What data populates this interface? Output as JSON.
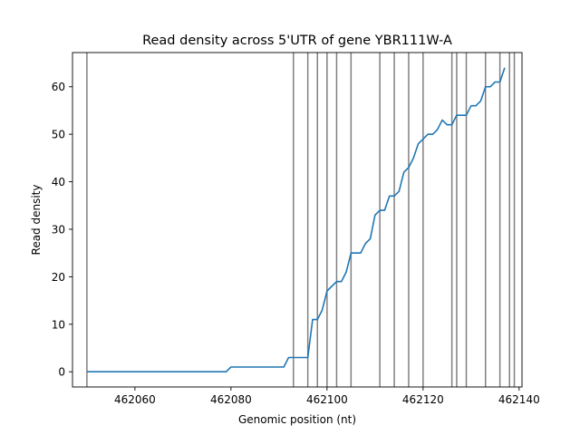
{
  "chart_data": {
    "type": "line",
    "title": "Read density across 5'UTR of gene YBR111W-A",
    "xlabel": "Genomic position (nt)",
    "ylabel": "Read density",
    "xlim": [
      462047,
      462140.6
    ],
    "ylim": [
      -3.2,
      67.2
    ],
    "xticks": [
      462060,
      462080,
      462100,
      462120,
      462140
    ],
    "yticks": [
      0,
      10,
      20,
      30,
      40,
      50,
      60
    ],
    "grid": false,
    "legend": "none",
    "line_color": "#1f77b4",
    "vline_color": "#808080",
    "vlines": [
      462050,
      462093,
      462096,
      462098,
      462100,
      462102,
      462105,
      462111,
      462114,
      462117,
      462120,
      462126,
      462127,
      462129,
      462133,
      462136,
      462138,
      462139
    ],
    "series": [
      {
        "x": [
          462050,
          462079,
          462080,
          462091,
          462092,
          462096,
          462097,
          462098,
          462099,
          462100,
          462101,
          462102,
          462103,
          462104,
          462105,
          462106,
          462107,
          462108,
          462109,
          462110,
          462111,
          462112,
          462113,
          462114,
          462115,
          462116,
          462117,
          462118,
          462119,
          462120,
          462121,
          462122,
          462123,
          462124,
          462125,
          462126,
          462127,
          462128,
          462129,
          462130,
          462131,
          462132,
          462133,
          462134,
          462135,
          462136,
          462137
        ],
        "values": [
          0,
          0,
          1,
          1,
          3,
          3,
          11,
          11,
          13,
          17,
          18,
          19,
          19,
          21,
          25,
          25,
          25,
          27,
          28,
          33,
          34,
          34,
          37,
          37,
          38,
          42,
          43,
          45,
          48,
          49,
          50,
          50,
          51,
          53,
          52,
          52,
          54,
          54,
          54,
          56,
          56,
          57,
          60,
          60,
          61,
          61,
          64
        ]
      }
    ]
  }
}
